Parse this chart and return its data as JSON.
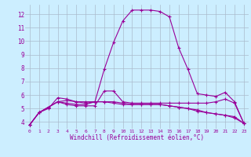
{
  "x": [
    0,
    1,
    2,
    3,
    4,
    5,
    6,
    7,
    8,
    9,
    10,
    11,
    12,
    13,
    14,
    15,
    16,
    17,
    18,
    19,
    20,
    21,
    22,
    23
  ],
  "line1": [
    3.8,
    4.7,
    5.1,
    5.5,
    5.4,
    5.3,
    5.3,
    5.5,
    7.9,
    9.9,
    11.5,
    12.3,
    12.3,
    12.3,
    12.2,
    11.8,
    9.5,
    7.9,
    6.1,
    6.0,
    5.9,
    6.2,
    5.5,
    3.9
  ],
  "line2": [
    3.8,
    4.7,
    5.1,
    5.5,
    5.3,
    5.2,
    5.2,
    5.2,
    6.3,
    6.3,
    5.5,
    5.4,
    5.4,
    5.4,
    5.4,
    5.4,
    5.4,
    5.4,
    5.4,
    5.4,
    5.5,
    5.7,
    5.4,
    3.9
  ],
  "line3": [
    3.8,
    4.7,
    5.1,
    5.5,
    5.6,
    5.5,
    5.4,
    5.5,
    5.5,
    5.5,
    5.4,
    5.3,
    5.3,
    5.3,
    5.3,
    5.2,
    5.1,
    5.0,
    4.9,
    4.7,
    4.6,
    4.5,
    4.4,
    3.9
  ],
  "line4": [
    3.8,
    4.7,
    5.0,
    5.8,
    5.7,
    5.5,
    5.5,
    5.5,
    5.5,
    5.4,
    5.3,
    5.3,
    5.3,
    5.3,
    5.3,
    5.2,
    5.1,
    5.0,
    4.8,
    4.7,
    4.6,
    4.5,
    4.3,
    3.9
  ],
  "color": "#990099",
  "bg_color": "#cceeff",
  "grid_color": "#aabbcc",
  "ylim": [
    3.5,
    12.7
  ],
  "yticks": [
    4,
    5,
    6,
    7,
    8,
    9,
    10,
    11,
    12
  ],
  "xticks": [
    0,
    1,
    2,
    3,
    4,
    5,
    6,
    7,
    8,
    9,
    10,
    11,
    12,
    13,
    14,
    15,
    16,
    17,
    18,
    19,
    20,
    21,
    22,
    23
  ],
  "xlabel": "Windchill (Refroidissement éolien,°C)",
  "marker": "+"
}
